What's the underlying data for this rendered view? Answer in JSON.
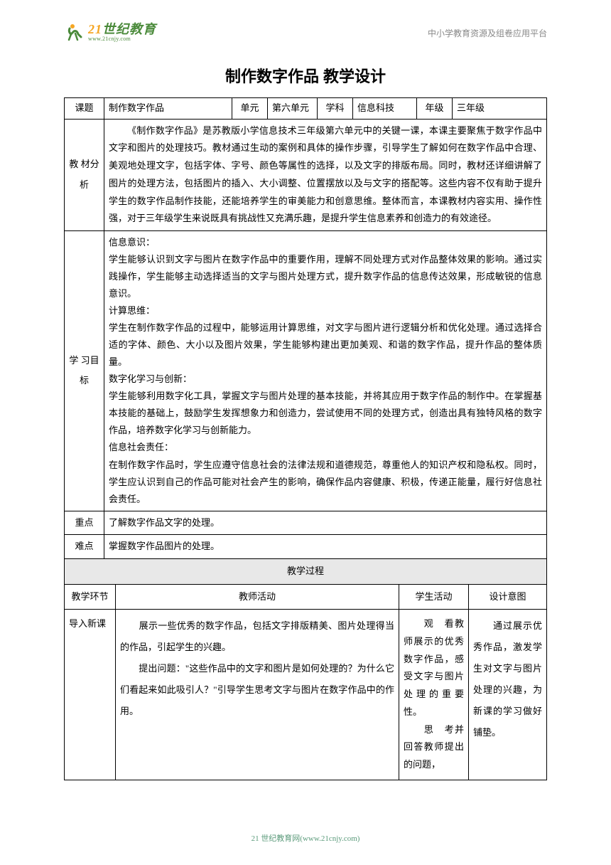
{
  "header": {
    "logo_main": "世纪教育",
    "logo_prefix": "21",
    "logo_sub": "www.21cnjy.com",
    "right_text": "中小学教育资源及组卷应用平台"
  },
  "title": "制作数字作品 教学设计",
  "info_row": {
    "topic_label": "课题",
    "topic_value": "制作数字作品",
    "unit_label": "单元",
    "unit_value": "第六单元",
    "subject_label": "学科",
    "subject_value": "信息科技",
    "grade_label": "年级",
    "grade_value": "三年级"
  },
  "analysis": {
    "label": "教 材分 析",
    "text": "《制作数字作品》是苏教版小学信息技术三年级第六单元中的关键一课，本课主要聚焦于数字作品中文字和图片的处理技巧。教材通过生动的案例和具体的操作步骤，引导学生了解如何在数字作品中合理、美观地处理文字，包括字体、字号、颜色等属性的选择，以及文字的排版布局。同时，教材还详细讲解了图片的处理方法，包括图片的插入、大小调整、位置摆放以及与文字的搭配等。这些内容不仅有助于提升学生的数字作品制作技能，还能培养学生的审美能力和创意思维。整体而言，本课教材内容实用、操作性强，对于三年级学生来说既具有挑战性又充满乐趣，是提升学生信息素养和创造力的有效途径。"
  },
  "objectives": {
    "label": "学 习目 标",
    "h1": "信息意识：",
    "p1": "学生能够认识到文字与图片在数字作品中的重要作用，理解不同处理方式对作品整体效果的影响。通过实践操作，学生能够主动选择适当的文字与图片处理方式，提升数字作品的信息传达效果，形成敏锐的信息意识。",
    "h2": "计算思维：",
    "p2": "学生在制作数字作品的过程中，能够运用计算思维，对文字与图片进行逻辑分析和优化处理。通过选择合适的字体、颜色、大小以及图片效果，学生能够构建出更加美观、和谐的数字作品，提升作品的整体质量。",
    "h3": "数字化学习与创新：",
    "p3": "学生能够利用数字化工具，掌握文字与图片处理的基本技能，并将其应用于数字作品的制作中。在掌握基本技能的基础上，鼓励学生发挥想象力和创造力，尝试使用不同的处理方式，创造出具有独特风格的数字作品，培养数字化学习与创新能力。",
    "h4": "信息社会责任：",
    "p4": "在制作数字作品时，学生应遵守信息社会的法律法规和道德规范，尊重他人的知识产权和隐私权。同时，学生应认识到自己的作品可能对社会产生的影响，确保作品内容健康、积极，传递正能量，履行好信息社会责任。"
  },
  "keypoint": {
    "label": "重点",
    "text": "了解数字作品文字的处理。"
  },
  "difficulty": {
    "label": "难点",
    "text": "掌握数字作品图片的处理。"
  },
  "process_title": "教学过程",
  "process_headers": {
    "c1": "教学环节",
    "c2": "教师活动",
    "c3": "学生活动",
    "c4": "设计意图"
  },
  "process_row": {
    "phase": "导入新课",
    "teacher": "　　展示一些优秀的数字作品，包括文字排版精美、图片处理得当的作品，引起学生的兴趣。\n　　提出问题：\"这些作品中的文字和图片是如何处理的？为什么它们看起来如此吸引人？\"引导学生思考文字与图片在数字作品中的作用。",
    "student": "　　观　看教师展示的优秀数字作品，感受文字与图片处理的重要性。\n　　思　考并回答教师提出的问题，",
    "intent": "　　通过展示优秀作品，激发学生对文字与图片处理的兴趣，为新课的学习做好铺垫。"
  },
  "footer": "21 世纪教育网(www.21cnjy.com)",
  "colors": {
    "text": "#000000",
    "header_gray": "#888888",
    "logo_green": "#4a8a3a",
    "footer_green": "#5a9a7a",
    "section_bg": "#e8e8e8",
    "border": "#000000"
  }
}
